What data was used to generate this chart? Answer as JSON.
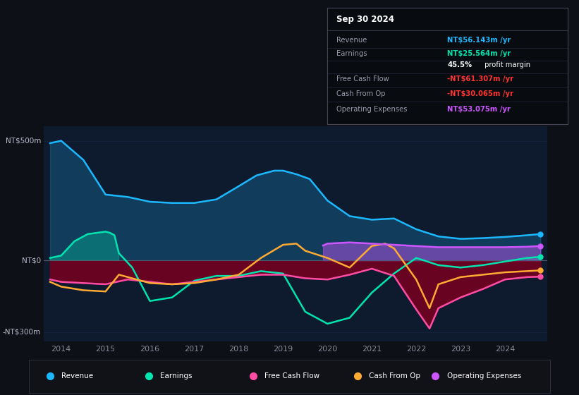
{
  "bg_color": "#0d1117",
  "plot_bg_color": "#0e1a2e",
  "grid_color": "#172540",
  "zero_line_color": "#4a5a6a",
  "colors": {
    "revenue": "#1cb8ff",
    "earnings": "#00e5b0",
    "fcf": "#ff4da6",
    "cashfromop": "#ffaa33",
    "opex": "#cc55ff"
  },
  "revenue_x": [
    2013.75,
    2014.0,
    2014.5,
    2015.0,
    2015.5,
    2016.0,
    2016.5,
    2017.0,
    2017.5,
    2018.0,
    2018.4,
    2018.8,
    2019.0,
    2019.3,
    2019.6,
    2020.0,
    2020.5,
    2021.0,
    2021.5,
    2022.0,
    2022.5,
    2023.0,
    2023.5,
    2024.0,
    2024.5,
    2024.8
  ],
  "revenue_y": [
    490,
    500,
    420,
    275,
    265,
    245,
    240,
    240,
    255,
    310,
    355,
    375,
    375,
    360,
    340,
    250,
    185,
    170,
    175,
    130,
    100,
    90,
    93,
    98,
    105,
    110
  ],
  "earnings_x": [
    2013.75,
    2014.0,
    2014.3,
    2014.6,
    2015.0,
    2015.1,
    2015.2,
    2015.3,
    2015.6,
    2016.0,
    2016.5,
    2017.0,
    2017.5,
    2018.0,
    2018.5,
    2019.0,
    2019.5,
    2020.0,
    2020.5,
    2021.0,
    2021.5,
    2022.0,
    2022.5,
    2023.0,
    2023.5,
    2024.0,
    2024.5,
    2024.8
  ],
  "earnings_y": [
    10,
    20,
    80,
    110,
    120,
    115,
    105,
    30,
    -30,
    -170,
    -155,
    -85,
    -65,
    -65,
    -45,
    -55,
    -215,
    -265,
    -240,
    -135,
    -55,
    10,
    -20,
    -30,
    -20,
    -5,
    10,
    15
  ],
  "fcf_x": [
    2013.75,
    2014.0,
    2014.5,
    2015.0,
    2015.5,
    2016.0,
    2016.5,
    2017.0,
    2017.5,
    2018.0,
    2018.5,
    2019.0,
    2019.5,
    2020.0,
    2020.5,
    2021.0,
    2021.5,
    2022.0,
    2022.3,
    2022.5,
    2023.0,
    2023.5,
    2024.0,
    2024.5,
    2024.8
  ],
  "fcf_y": [
    -80,
    -90,
    -95,
    -100,
    -80,
    -90,
    -100,
    -90,
    -80,
    -70,
    -60,
    -60,
    -75,
    -80,
    -60,
    -35,
    -65,
    -205,
    -285,
    -200,
    -155,
    -120,
    -80,
    -70,
    -68
  ],
  "cashfromop_x": [
    2013.75,
    2014.0,
    2014.5,
    2015.0,
    2015.3,
    2015.5,
    2016.0,
    2016.5,
    2017.0,
    2017.5,
    2018.0,
    2018.5,
    2019.0,
    2019.3,
    2019.5,
    2020.0,
    2020.5,
    2021.0,
    2021.3,
    2021.5,
    2022.0,
    2022.3,
    2022.5,
    2023.0,
    2023.5,
    2024.0,
    2024.5,
    2024.8
  ],
  "cashfromop_y": [
    -90,
    -110,
    -125,
    -130,
    -60,
    -70,
    -95,
    -100,
    -95,
    -80,
    -60,
    10,
    65,
    70,
    40,
    10,
    -30,
    60,
    70,
    50,
    -80,
    -200,
    -100,
    -70,
    -60,
    -50,
    -45,
    -42
  ],
  "opex_x": [
    2019.9,
    2020.0,
    2020.5,
    2021.0,
    2021.5,
    2022.0,
    2022.5,
    2023.0,
    2023.5,
    2024.0,
    2024.5,
    2024.8
  ],
  "opex_y": [
    62,
    70,
    75,
    70,
    65,
    60,
    55,
    55,
    55,
    55,
    57,
    60
  ],
  "ylim": [
    -340,
    560
  ],
  "xlim": [
    2013.6,
    2024.95
  ],
  "xticks": [
    2014,
    2015,
    2016,
    2017,
    2018,
    2019,
    2020,
    2021,
    2022,
    2023,
    2024
  ],
  "legend": [
    {
      "label": "Revenue",
      "color": "#1cb8ff"
    },
    {
      "label": "Earnings",
      "color": "#00e5b0"
    },
    {
      "label": "Free Cash Flow",
      "color": "#ff4da6"
    },
    {
      "label": "Cash From Op",
      "color": "#ffaa33"
    },
    {
      "label": "Operating Expenses",
      "color": "#cc55ff"
    }
  ],
  "info_date": "Sep 30 2024",
  "info_rows": [
    {
      "label": "Revenue",
      "value": "NT$56.143m /yr",
      "val_color": "#1cb8ff",
      "extra": null
    },
    {
      "label": "Earnings",
      "value": "NT$25.564m /yr",
      "val_color": "#00e5b0",
      "extra": null
    },
    {
      "label": "",
      "value": "45.5%",
      "val_color": "#ffffff",
      "extra": " profit margin"
    },
    {
      "label": "Free Cash Flow",
      "value": "-NT$61.307m /yr",
      "val_color": "#ff3333",
      "extra": null
    },
    {
      "label": "Cash From Op",
      "value": "-NT$30.065m /yr",
      "val_color": "#ff3333",
      "extra": null
    },
    {
      "label": "Operating Expenses",
      "value": "NT$53.075m /yr",
      "val_color": "#cc55ff",
      "extra": null
    }
  ],
  "dot_end_values": {
    "revenue": 110,
    "earnings": 15,
    "fcf": -68,
    "cashfromop": -42,
    "opex": 60
  }
}
